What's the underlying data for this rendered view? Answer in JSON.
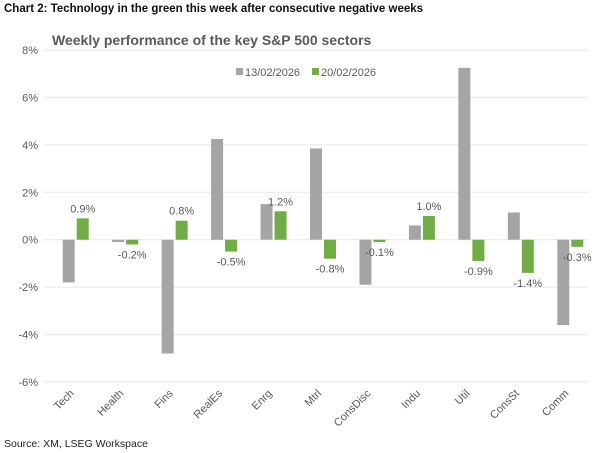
{
  "header": "Chart 2: Technology in the green this week after consecutive negative weeks",
  "source": "Source: XM, LSEG Workspace",
  "chart_data": {
    "type": "bar",
    "title": "Weekly performance of the key S&P 500 sectors",
    "xlabel": "",
    "ylabel": "",
    "categories": [
      "Tech",
      "Health",
      "Fins",
      "RealEs",
      "Enrg",
      "Mtrl",
      "ConsDisc",
      "Indu",
      "Util",
      "ConsSt",
      "Comm"
    ],
    "series": [
      {
        "name": "13/02/2026",
        "color": "#a5a5a5",
        "values": [
          -1.8,
          -0.1,
          -4.8,
          4.25,
          1.5,
          3.85,
          -1.9,
          0.6,
          7.25,
          1.15,
          -3.6
        ]
      },
      {
        "name": "20/02/2026",
        "color": "#70ad47",
        "values": [
          0.9,
          -0.2,
          0.8,
          -0.5,
          1.2,
          -0.8,
          -0.1,
          1.0,
          -0.9,
          -1.4,
          -0.3
        ]
      }
    ],
    "data_labels": [
      "0.9%",
      "-0.2%",
      "0.8%",
      "-0.5%",
      "1.2%",
      "-0.8%",
      "-0.1%",
      "1.0%",
      "-0.9%",
      "-1.4%",
      "-0.3%"
    ],
    "ylim": [
      -6,
      8
    ],
    "yticks": [
      "-6%",
      "-4%",
      "-2%",
      "0%",
      "2%",
      "4%",
      "6%",
      "8%"
    ],
    "ytick_values": [
      -6,
      -4,
      -2,
      0,
      2,
      4,
      6,
      8
    ],
    "grid": true,
    "legend": "top-center"
  }
}
